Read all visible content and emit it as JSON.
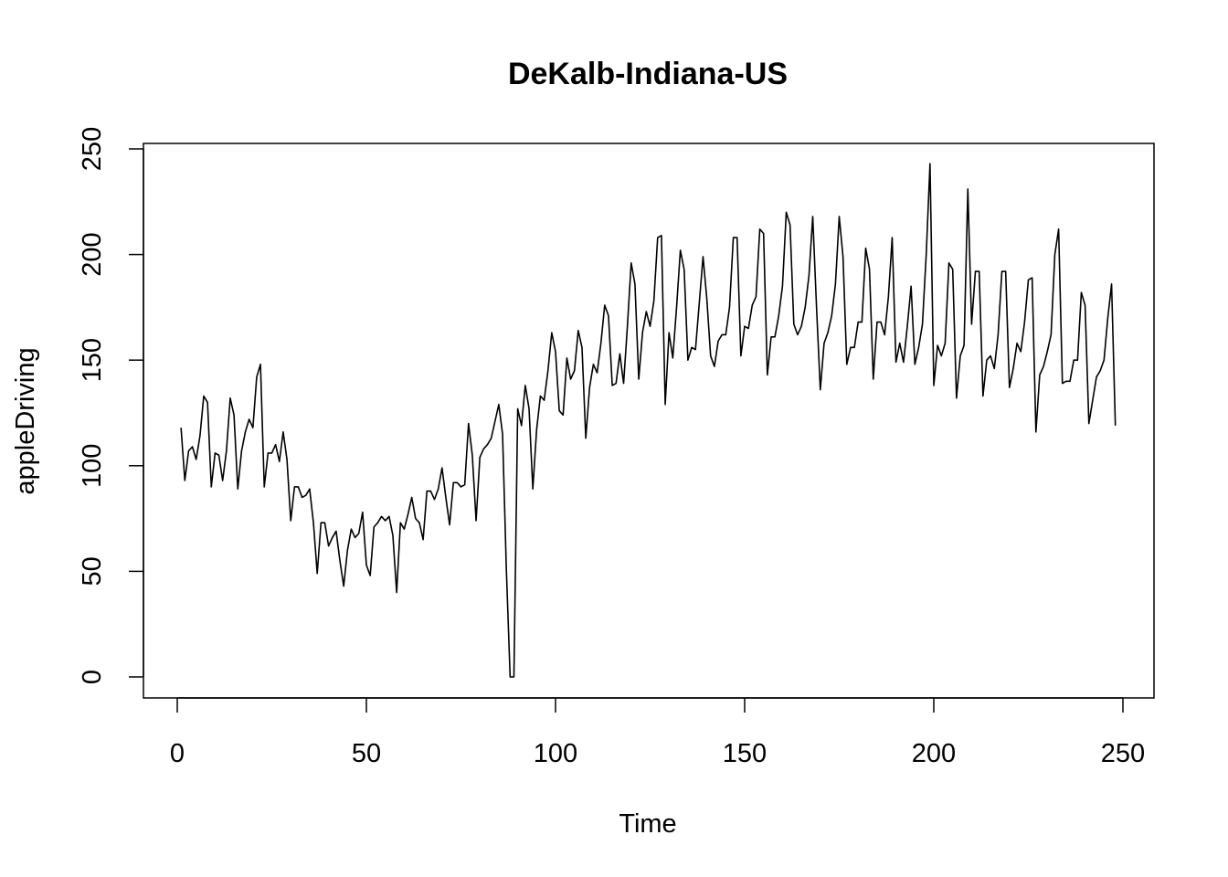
{
  "chart_data": {
    "type": "line",
    "title": "DeKalb-Indiana-US",
    "xlabel": "Time",
    "ylabel": "appleDriving",
    "xlim": [
      0,
      250
    ],
    "ylim": [
      0,
      250
    ],
    "x_ticks": [
      0,
      50,
      100,
      150,
      200,
      250
    ],
    "y_ticks": [
      0,
      50,
      100,
      150,
      200,
      250
    ],
    "x_tick_labels": [
      "0",
      "50",
      "100",
      "150",
      "200",
      "250"
    ],
    "y_tick_labels": [
      "0",
      "50",
      "100",
      "150",
      "200",
      "250"
    ],
    "grid": false,
    "legend": "none",
    "series": [
      {
        "x_start": 1,
        "x_step": 1,
        "values": [
          118,
          93,
          107,
          109,
          103,
          114,
          133,
          130,
          90,
          106,
          105,
          93,
          107,
          132,
          124,
          89,
          107,
          116,
          122,
          118,
          142,
          148,
          90,
          106,
          106,
          110,
          102,
          116,
          103,
          74,
          90,
          90,
          85,
          86,
          89,
          73,
          49,
          73,
          73,
          62,
          66,
          69,
          55,
          43,
          60,
          70,
          66,
          68,
          78,
          53,
          48,
          71,
          73,
          76,
          74,
          76,
          67,
          40,
          73,
          70,
          77,
          85,
          75,
          73,
          65,
          88,
          88,
          84,
          89,
          99,
          85,
          72,
          92,
          92,
          90,
          91,
          120,
          105,
          74,
          104,
          108,
          110,
          113,
          121,
          129,
          115,
          51,
          0,
          0,
          127,
          119,
          138,
          127,
          89,
          117,
          133,
          131,
          145,
          163,
          154,
          126,
          124,
          151,
          141,
          145,
          164,
          156,
          113,
          137,
          148,
          144,
          158,
          176,
          171,
          138,
          139,
          153,
          139,
          166,
          196,
          186,
          141,
          163,
          173,
          166,
          178,
          208,
          209,
          129,
          163,
          151,
          175,
          202,
          193,
          150,
          156,
          155,
          177,
          199,
          179,
          152,
          147,
          159,
          162,
          162,
          175,
          208,
          208,
          152,
          166,
          165,
          176,
          180,
          212,
          210,
          143,
          161,
          161,
          171,
          185,
          220,
          214,
          167,
          162,
          166,
          175,
          190,
          218,
          175,
          136,
          158,
          163,
          171,
          186,
          218,
          199,
          148,
          156,
          156,
          168,
          168,
          203,
          193,
          141,
          168,
          168,
          162,
          180,
          208,
          149,
          158,
          149,
          166,
          185,
          148,
          156,
          167,
          200,
          243,
          138,
          157,
          152,
          158,
          196,
          193,
          132,
          152,
          157,
          231,
          167,
          192,
          192,
          133,
          150,
          152,
          146,
          162,
          192,
          192,
          137,
          146,
          158,
          154,
          168,
          188,
          189,
          116,
          143,
          147,
          154,
          162,
          200,
          212,
          139,
          140,
          140,
          150,
          150,
          182,
          176,
          120,
          131,
          142,
          145,
          150,
          170,
          186,
          119
        ]
      }
    ]
  }
}
